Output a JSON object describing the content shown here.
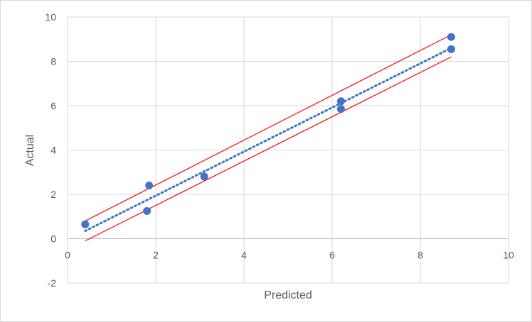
{
  "chart_data": {
    "type": "scatter",
    "title": "",
    "xlabel": "Predicted",
    "ylabel": "Actual",
    "xlim": [
      0,
      10
    ],
    "ylim": [
      -2,
      10
    ],
    "x_ticks": [
      "0",
      "2",
      "4",
      "6",
      "8",
      "10"
    ],
    "y_ticks": [
      "-2",
      "0",
      "2",
      "4",
      "6",
      "8",
      "10"
    ],
    "grid": true,
    "legend": "none",
    "series": [
      {
        "kind": "markers",
        "color": "#4472c4",
        "points": [
          {
            "x": 0.4,
            "y": 0.65
          },
          {
            "x": 1.8,
            "y": 1.25
          },
          {
            "x": 1.85,
            "y": 2.4
          },
          {
            "x": 3.1,
            "y": 2.8
          },
          {
            "x": 6.2,
            "y": 5.85
          },
          {
            "x": 6.2,
            "y": 6.2
          },
          {
            "x": 8.7,
            "y": 8.55
          },
          {
            "x": 8.7,
            "y": 9.1
          }
        ]
      },
      {
        "kind": "trendline",
        "style": "dotted",
        "color": "#4472c4",
        "points": [
          {
            "x": 0.4,
            "y": 0.35
          },
          {
            "x": 8.7,
            "y": 8.6
          }
        ]
      },
      {
        "kind": "line",
        "color": "#ff0000",
        "points": [
          {
            "x": 0.4,
            "y": 0.8
          },
          {
            "x": 8.7,
            "y": 9.2
          }
        ]
      },
      {
        "kind": "line",
        "color": "#ff0000",
        "points": [
          {
            "x": 0.4,
            "y": -0.1
          },
          {
            "x": 8.7,
            "y": 8.2
          }
        ]
      }
    ]
  }
}
